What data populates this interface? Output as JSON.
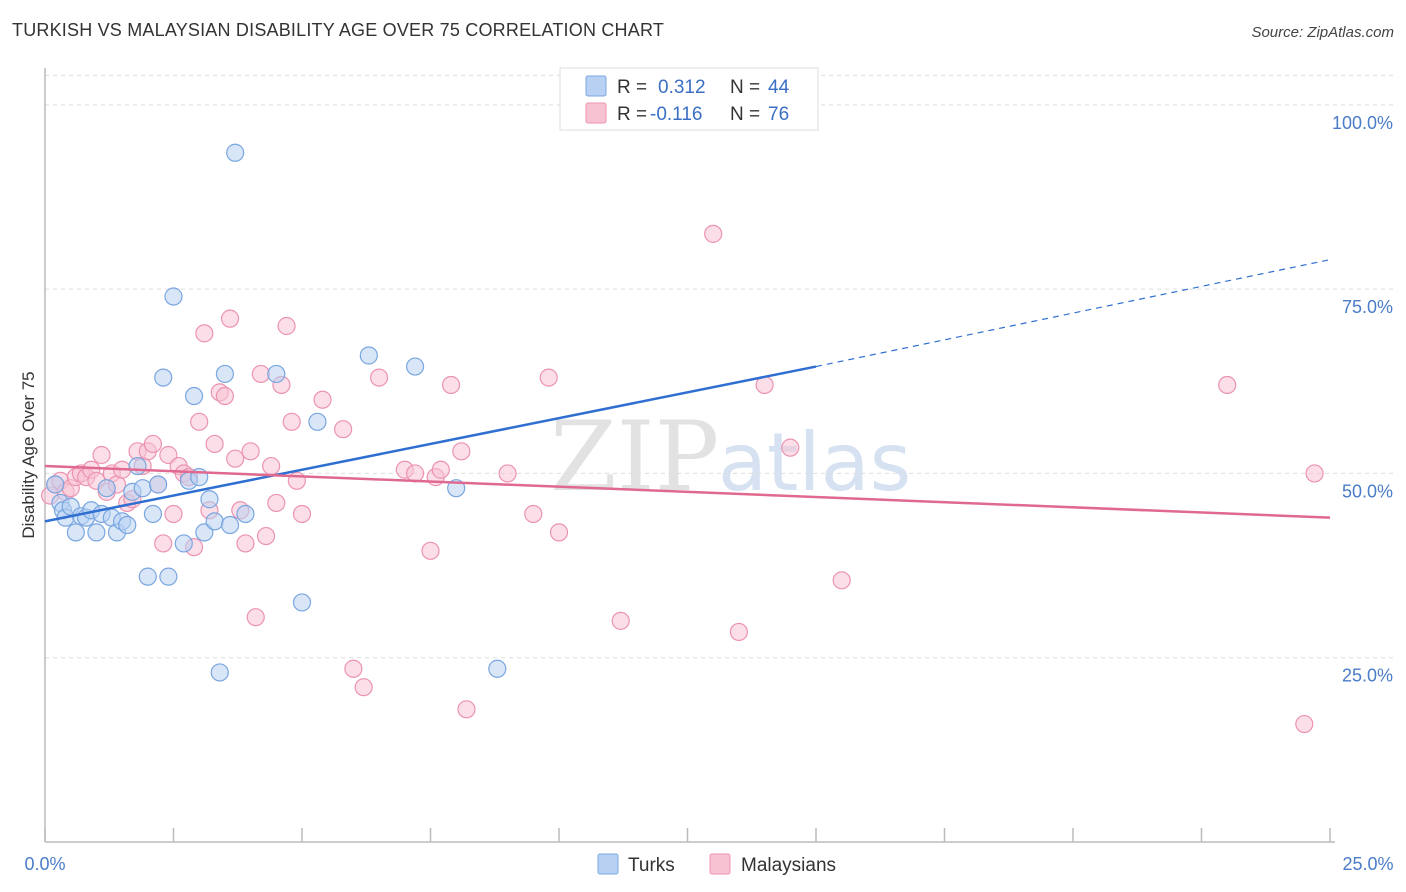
{
  "header": {
    "title": "TURKISH VS MALAYSIAN DISABILITY AGE OVER 75 CORRELATION CHART",
    "source": "Source: ZipAtlas.com"
  },
  "watermark": {
    "zip": "ZIP",
    "atlas": "atlas"
  },
  "legend": {
    "turks": {
      "r_label": "R =",
      "r_value": "0.312",
      "n_label": "N =",
      "n_value": "44"
    },
    "malaysians": {
      "r_label": "R =",
      "r_value": "-0.116",
      "n_label": "N =",
      "n_value": "76"
    }
  },
  "bottom_legend": {
    "turks": "Turks",
    "malaysians": "Malaysians"
  },
  "colors": {
    "turks_fill": "#b8d1f3",
    "turks_stroke": "#7aa6e0",
    "turks_line": "#2f6fd1",
    "malaysians_fill": "#f7c3d3",
    "malaysians_stroke": "#ec93b2",
    "malaysians_line": "#e0698f",
    "tick_text": "#4a7cc8",
    "grid": "#dddddd"
  },
  "chart_data": {
    "type": "scatter",
    "title": "TURKISH VS MALAYSIAN DISABILITY AGE OVER 75 CORRELATION CHART",
    "xlabel": "",
    "ylabel": "Disability Age Over 75",
    "xlim": [
      0,
      25
    ],
    "ylim": [
      0,
      105
    ],
    "x_tick_labels": [
      "0.0%",
      "25.0%"
    ],
    "y_ticks": [
      25,
      50,
      75,
      100
    ],
    "y_tick_labels": [
      "25.0%",
      "50.0%",
      "75.0%",
      "100.0%"
    ],
    "grid": true,
    "legend_position": "top-center",
    "series": [
      {
        "name": "Turks",
        "R": 0.312,
        "N": 44,
        "trend": {
          "x0": 0,
          "y0": 43.5,
          "x1": 15,
          "y1": 64.5,
          "dashed_to_x": 25,
          "dashed_to_y": 79
        },
        "points": [
          [
            0.2,
            48.5
          ],
          [
            0.3,
            46
          ],
          [
            0.35,
            45
          ],
          [
            0.4,
            44
          ],
          [
            0.5,
            45.5
          ],
          [
            0.6,
            42
          ],
          [
            0.7,
            44.2
          ],
          [
            0.8,
            44
          ],
          [
            0.9,
            45
          ],
          [
            1.0,
            42
          ],
          [
            1.1,
            44.5
          ],
          [
            1.2,
            48
          ],
          [
            1.3,
            44
          ],
          [
            1.4,
            42
          ],
          [
            1.5,
            43.5
          ],
          [
            1.6,
            43
          ],
          [
            1.7,
            47.5
          ],
          [
            1.8,
            51
          ],
          [
            1.9,
            48
          ],
          [
            2.0,
            36
          ],
          [
            2.1,
            44.5
          ],
          [
            2.2,
            48.5
          ],
          [
            2.3,
            63
          ],
          [
            2.4,
            36
          ],
          [
            2.5,
            74
          ],
          [
            2.7,
            40.5
          ],
          [
            2.8,
            49
          ],
          [
            2.9,
            60.5
          ],
          [
            3.0,
            49.5
          ],
          [
            3.1,
            42
          ],
          [
            3.2,
            46.5
          ],
          [
            3.3,
            43.5
          ],
          [
            3.4,
            23
          ],
          [
            3.5,
            63.5
          ],
          [
            3.6,
            43
          ],
          [
            3.7,
            93.5
          ],
          [
            3.9,
            44.5
          ],
          [
            4.5,
            63.5
          ],
          [
            5.0,
            32.5
          ],
          [
            5.3,
            57
          ],
          [
            6.3,
            66
          ],
          [
            7.2,
            64.5
          ],
          [
            8.0,
            48
          ],
          [
            8.8,
            23.5
          ]
        ]
      },
      {
        "name": "Malaysians",
        "R": -0.116,
        "N": 76,
        "trend": {
          "x0": 0,
          "y0": 51,
          "x1": 25,
          "y1": 44
        },
        "points": [
          [
            0.1,
            47
          ],
          [
            0.2,
            48.5
          ],
          [
            0.3,
            49
          ],
          [
            0.4,
            47.5
          ],
          [
            0.5,
            48
          ],
          [
            0.6,
            49.5
          ],
          [
            0.7,
            50
          ],
          [
            0.8,
            49.5
          ],
          [
            0.9,
            50.5
          ],
          [
            1.0,
            49
          ],
          [
            1.1,
            52.5
          ],
          [
            1.2,
            47.5
          ],
          [
            1.3,
            50
          ],
          [
            1.4,
            48.5
          ],
          [
            1.5,
            50.5
          ],
          [
            1.6,
            46
          ],
          [
            1.7,
            46.5
          ],
          [
            1.8,
            53
          ],
          [
            1.9,
            51
          ],
          [
            2.0,
            53
          ],
          [
            2.1,
            54
          ],
          [
            2.2,
            48.5
          ],
          [
            2.3,
            40.5
          ],
          [
            2.4,
            52.5
          ],
          [
            2.5,
            44.5
          ],
          [
            2.6,
            51
          ],
          [
            2.7,
            50
          ],
          [
            2.8,
            49.5
          ],
          [
            2.9,
            40
          ],
          [
            3.0,
            57
          ],
          [
            3.1,
            69
          ],
          [
            3.2,
            45
          ],
          [
            3.3,
            54
          ],
          [
            3.4,
            61
          ],
          [
            3.5,
            60.5
          ],
          [
            3.6,
            71
          ],
          [
            3.7,
            52
          ],
          [
            3.8,
            45
          ],
          [
            3.9,
            40.5
          ],
          [
            4.0,
            53
          ],
          [
            4.1,
            30.5
          ],
          [
            4.2,
            63.5
          ],
          [
            4.3,
            41.5
          ],
          [
            4.4,
            51
          ],
          [
            4.5,
            46
          ],
          [
            4.6,
            62
          ],
          [
            4.7,
            70
          ],
          [
            4.8,
            57
          ],
          [
            4.9,
            49
          ],
          [
            5.0,
            44.5
          ],
          [
            5.4,
            60
          ],
          [
            5.8,
            56
          ],
          [
            6.0,
            23.5
          ],
          [
            6.2,
            21
          ],
          [
            6.5,
            63
          ],
          [
            7.0,
            50.5
          ],
          [
            7.2,
            50
          ],
          [
            7.5,
            39.5
          ],
          [
            7.6,
            49.5
          ],
          [
            7.7,
            50.5
          ],
          [
            7.9,
            62
          ],
          [
            8.1,
            53
          ],
          [
            8.2,
            18
          ],
          [
            9.0,
            50
          ],
          [
            9.5,
            44.5
          ],
          [
            9.8,
            63
          ],
          [
            10.0,
            42
          ],
          [
            11.2,
            30
          ],
          [
            13.0,
            82.5
          ],
          [
            13.5,
            28.5
          ],
          [
            14.0,
            62
          ],
          [
            14.5,
            53.5
          ],
          [
            15.5,
            35.5
          ],
          [
            23.0,
            62
          ],
          [
            24.5,
            16
          ],
          [
            24.7,
            50
          ]
        ]
      }
    ]
  }
}
